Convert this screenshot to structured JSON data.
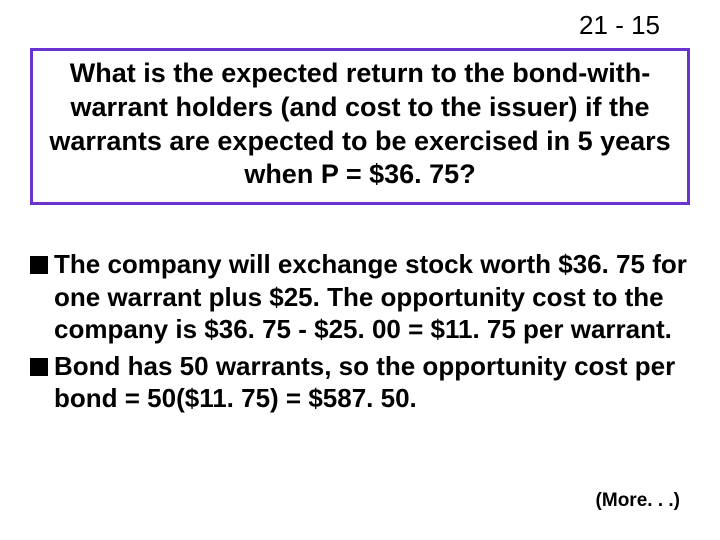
{
  "page_number": "21 - 15",
  "title": "What is the expected return to the bond-with-warrant holders (and cost to the issuer) if the warrants are expected to be exercised in 5 years when P = $36. 75?",
  "bullets": [
    "The company will exchange stock worth $36. 75 for one warrant plus $25.   The opportunity cost to the company is $36. 75 - $25. 00 = $11. 75 per warrant.",
    "Bond has 50 warrants, so the opportunity cost per bond = 50($11. 75) = $587. 50."
  ],
  "more_label": "(More. . .)",
  "colors": {
    "border": "#6833cf",
    "text": "#000000",
    "background": "#ffffff"
  },
  "fonts": {
    "page_number_size": 26,
    "title_size": 27,
    "body_size": 26,
    "more_size": 19
  }
}
